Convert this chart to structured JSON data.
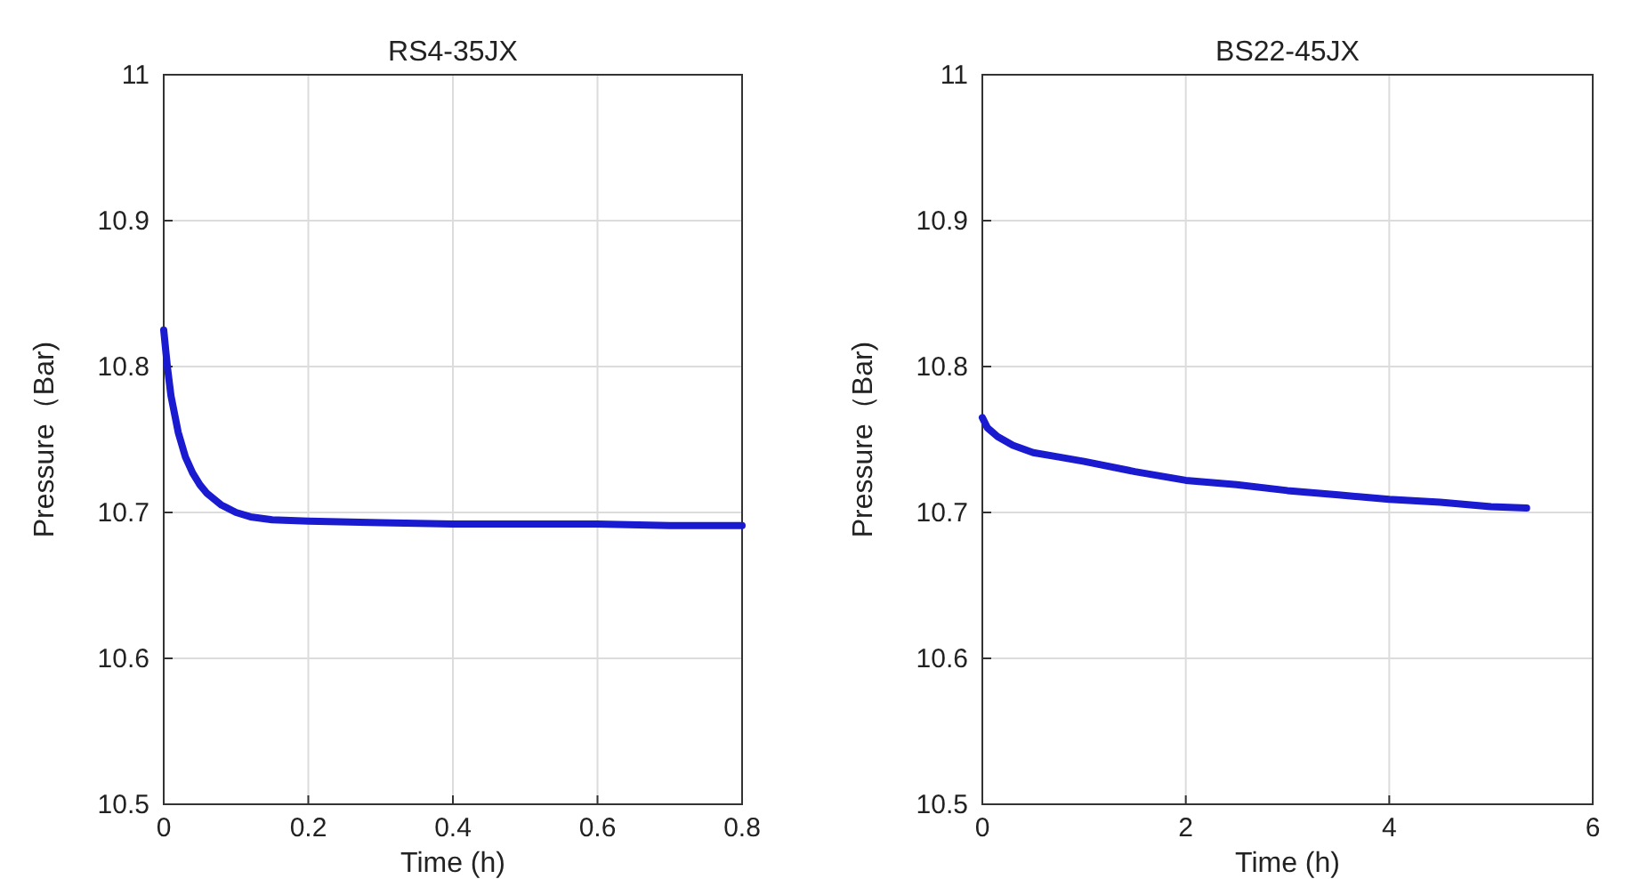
{
  "chart_data": [
    {
      "type": "line",
      "title": "RS4-35JX",
      "xlabel": "Time (h)",
      "ylabel": "Pressure（Bar)",
      "xlim": [
        0,
        0.8
      ],
      "xticks": [
        0,
        0.2,
        0.4,
        0.6,
        0.8
      ],
      "ylim": [
        10.5,
        11
      ],
      "yticks": [
        10.5,
        10.6,
        10.7,
        10.8,
        10.9,
        11
      ],
      "grid": true,
      "series": [
        {
          "color": "#1a1ad0",
          "x": [
            0,
            0.005,
            0.01,
            0.02,
            0.03,
            0.04,
            0.05,
            0.06,
            0.08,
            0.1,
            0.12,
            0.15,
            0.2,
            0.3,
            0.4,
            0.5,
            0.6,
            0.7,
            0.8
          ],
          "values": [
            10.825,
            10.8,
            10.78,
            10.755,
            10.738,
            10.727,
            10.719,
            10.713,
            10.705,
            10.7,
            10.697,
            10.695,
            10.694,
            10.693,
            10.692,
            10.692,
            10.692,
            10.691,
            10.691
          ]
        }
      ]
    },
    {
      "type": "line",
      "title": "BS22-45JX",
      "xlabel": "Time (h)",
      "ylabel": "Pressure（Bar)",
      "xlim": [
        0,
        6
      ],
      "xticks": [
        0,
        2,
        4,
        6
      ],
      "ylim": [
        10.5,
        11
      ],
      "yticks": [
        10.5,
        10.6,
        10.7,
        10.8,
        10.9,
        11
      ],
      "grid": true,
      "series": [
        {
          "color": "#1a1ad0",
          "x": [
            0,
            0.05,
            0.15,
            0.3,
            0.5,
            0.75,
            1,
            1.5,
            2,
            2.5,
            3,
            3.5,
            4,
            4.5,
            5,
            5.35
          ],
          "values": [
            10.765,
            10.758,
            10.752,
            10.746,
            10.741,
            10.738,
            10.735,
            10.728,
            10.722,
            10.719,
            10.715,
            10.712,
            10.709,
            10.707,
            10.704,
            10.703
          ]
        }
      ]
    }
  ]
}
